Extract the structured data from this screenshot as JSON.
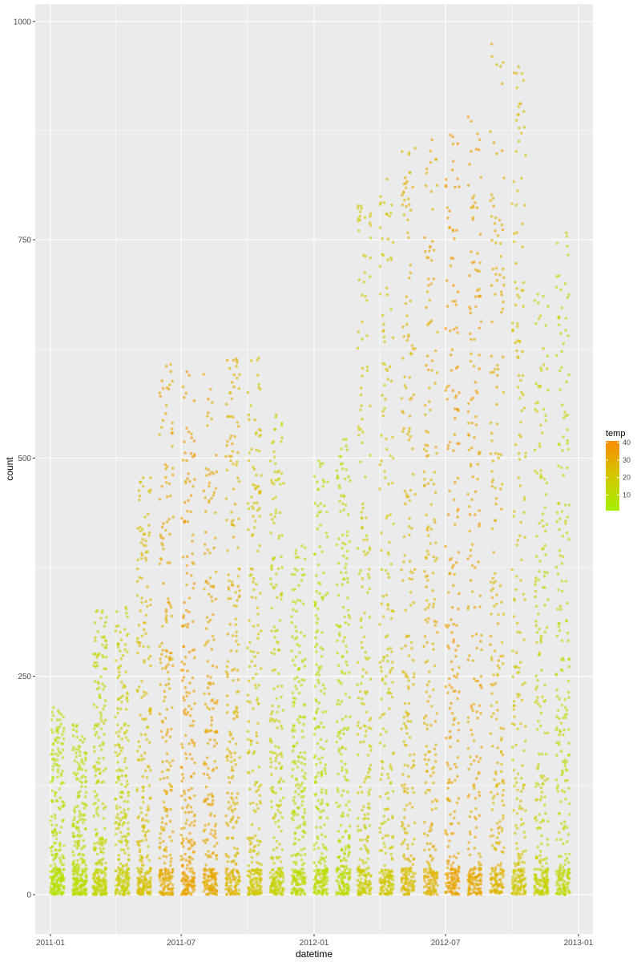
{
  "chart_data": {
    "type": "scatter",
    "xlabel": "datetime",
    "ylabel": "count",
    "x_domain": [
      "2010-12-11",
      "2013-01-21"
    ],
    "ylim": [
      -45,
      1020
    ],
    "x_ticks": [
      {
        "value": "2011-01-01",
        "label": "2011-01"
      },
      {
        "value": "2011-07-01",
        "label": "2011-07"
      },
      {
        "value": "2012-01-01",
        "label": "2012-01"
      },
      {
        "value": "2012-07-01",
        "label": "2012-07"
      },
      {
        "value": "2013-01-01",
        "label": "2013-01"
      }
    ],
    "y_ticks": [
      0,
      250,
      500,
      750,
      1000
    ],
    "y_tick_labels": [
      "0",
      "250",
      "500",
      "750",
      "1000"
    ],
    "grid": true,
    "background_color": "#ebebeb",
    "legend": {
      "title": "temp",
      "position": "right",
      "range": [
        1,
        41
      ],
      "ticks": [
        10,
        20,
        30,
        40
      ],
      "tick_labels": [
        "10",
        "20",
        "30",
        "40"
      ],
      "color_low": "#a5ef00",
      "color_high": "#f98c00"
    },
    "point_alpha": 0.6,
    "points_note": "dense hourly observations, days 1-19 of each month; approximate envelope per month",
    "months": [
      {
        "month": "2011-01",
        "max": 215,
        "temp": 8
      },
      {
        "month": "2011-02",
        "max": 200,
        "temp": 11
      },
      {
        "month": "2011-03",
        "max": 330,
        "temp": 14
      },
      {
        "month": "2011-04",
        "max": 330,
        "temp": 17
      },
      {
        "month": "2011-05",
        "max": 480,
        "temp": 23
      },
      {
        "month": "2011-06",
        "max": 610,
        "temp": 30
      },
      {
        "month": "2011-07",
        "max": 600,
        "temp": 33
      },
      {
        "month": "2011-08",
        "max": 600,
        "temp": 31
      },
      {
        "month": "2011-09",
        "max": 625,
        "temp": 27
      },
      {
        "month": "2011-10",
        "max": 620,
        "temp": 21
      },
      {
        "month": "2011-11",
        "max": 550,
        "temp": 16
      },
      {
        "month": "2011-12",
        "max": 400,
        "temp": 12
      },
      {
        "month": "2012-01",
        "max": 510,
        "temp": 11
      },
      {
        "month": "2012-02",
        "max": 530,
        "temp": 12
      },
      {
        "month": "2012-03",
        "max": 800,
        "temp": 18
      },
      {
        "month": "2012-04",
        "max": 820,
        "temp": 20
      },
      {
        "month": "2012-05",
        "max": 860,
        "temp": 25
      },
      {
        "month": "2012-06",
        "max": 870,
        "temp": 28
      },
      {
        "month": "2012-07",
        "max": 875,
        "temp": 33
      },
      {
        "month": "2012-08",
        "max": 895,
        "temp": 31
      },
      {
        "month": "2012-09",
        "max": 975,
        "temp": 27
      },
      {
        "month": "2012-10",
        "max": 950,
        "temp": 21
      },
      {
        "month": "2012-11",
        "max": 700,
        "temp": 15
      },
      {
        "month": "2012-12",
        "max": 760,
        "temp": 13
      }
    ]
  }
}
